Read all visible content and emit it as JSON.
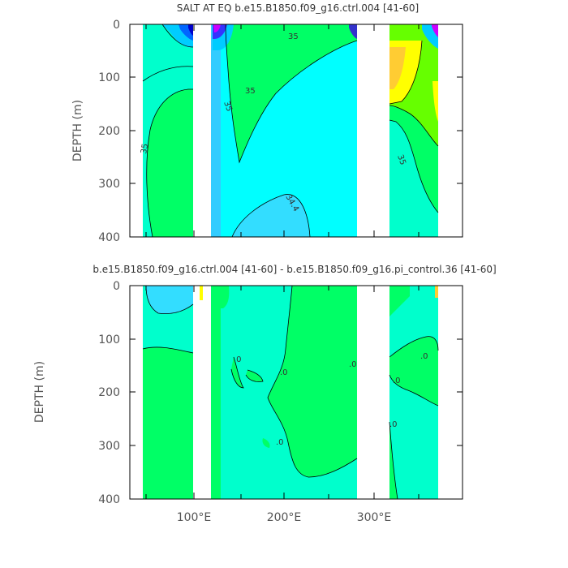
{
  "chart_data": [
    {
      "type": "contour",
      "title": "SALT AT EQ b.e15.B1850.f09_g16.ctrl.004 [41-60]",
      "ylabel": "DEPTH (m)",
      "ylim": [
        0,
        400
      ],
      "y_inverted": true,
      "xlim": [
        30,
        380
      ],
      "yticks": [
        "0",
        "100",
        "200",
        "300",
        "400"
      ],
      "xticks": [
        "100°E",
        "200°E",
        "300°E"
      ],
      "contour_labels": [
        "35",
        "35",
        "35",
        "35",
        "35",
        "34.4"
      ],
      "colors": {
        "cyan": "#00ffff",
        "aqua": "#00ffcc",
        "green": "#00ff66",
        "lightgreen": "#66ff00",
        "blue": "#33ccff",
        "yellow": "#ffff00",
        "orange": "#ffcc33",
        "purple": "#cc00ff"
      }
    },
    {
      "type": "contour",
      "title": "b.e15.B1850.f09_g16.ctrl.004 [41-60] - b.e15.B1850.f09_g16.pi_control.36 [41-60]",
      "ylabel": "DEPTH (m)",
      "ylim": [
        0,
        400
      ],
      "y_inverted": true,
      "xlim": [
        30,
        380
      ],
      "yticks": [
        "0",
        "100",
        "200",
        "300",
        "400"
      ],
      "xticks": [
        "100°E",
        "200°E",
        "300°E"
      ],
      "contour_labels": [
        ".0",
        ".0",
        ".0",
        ".0",
        ".0",
        ".0",
        ".0"
      ]
    }
  ]
}
